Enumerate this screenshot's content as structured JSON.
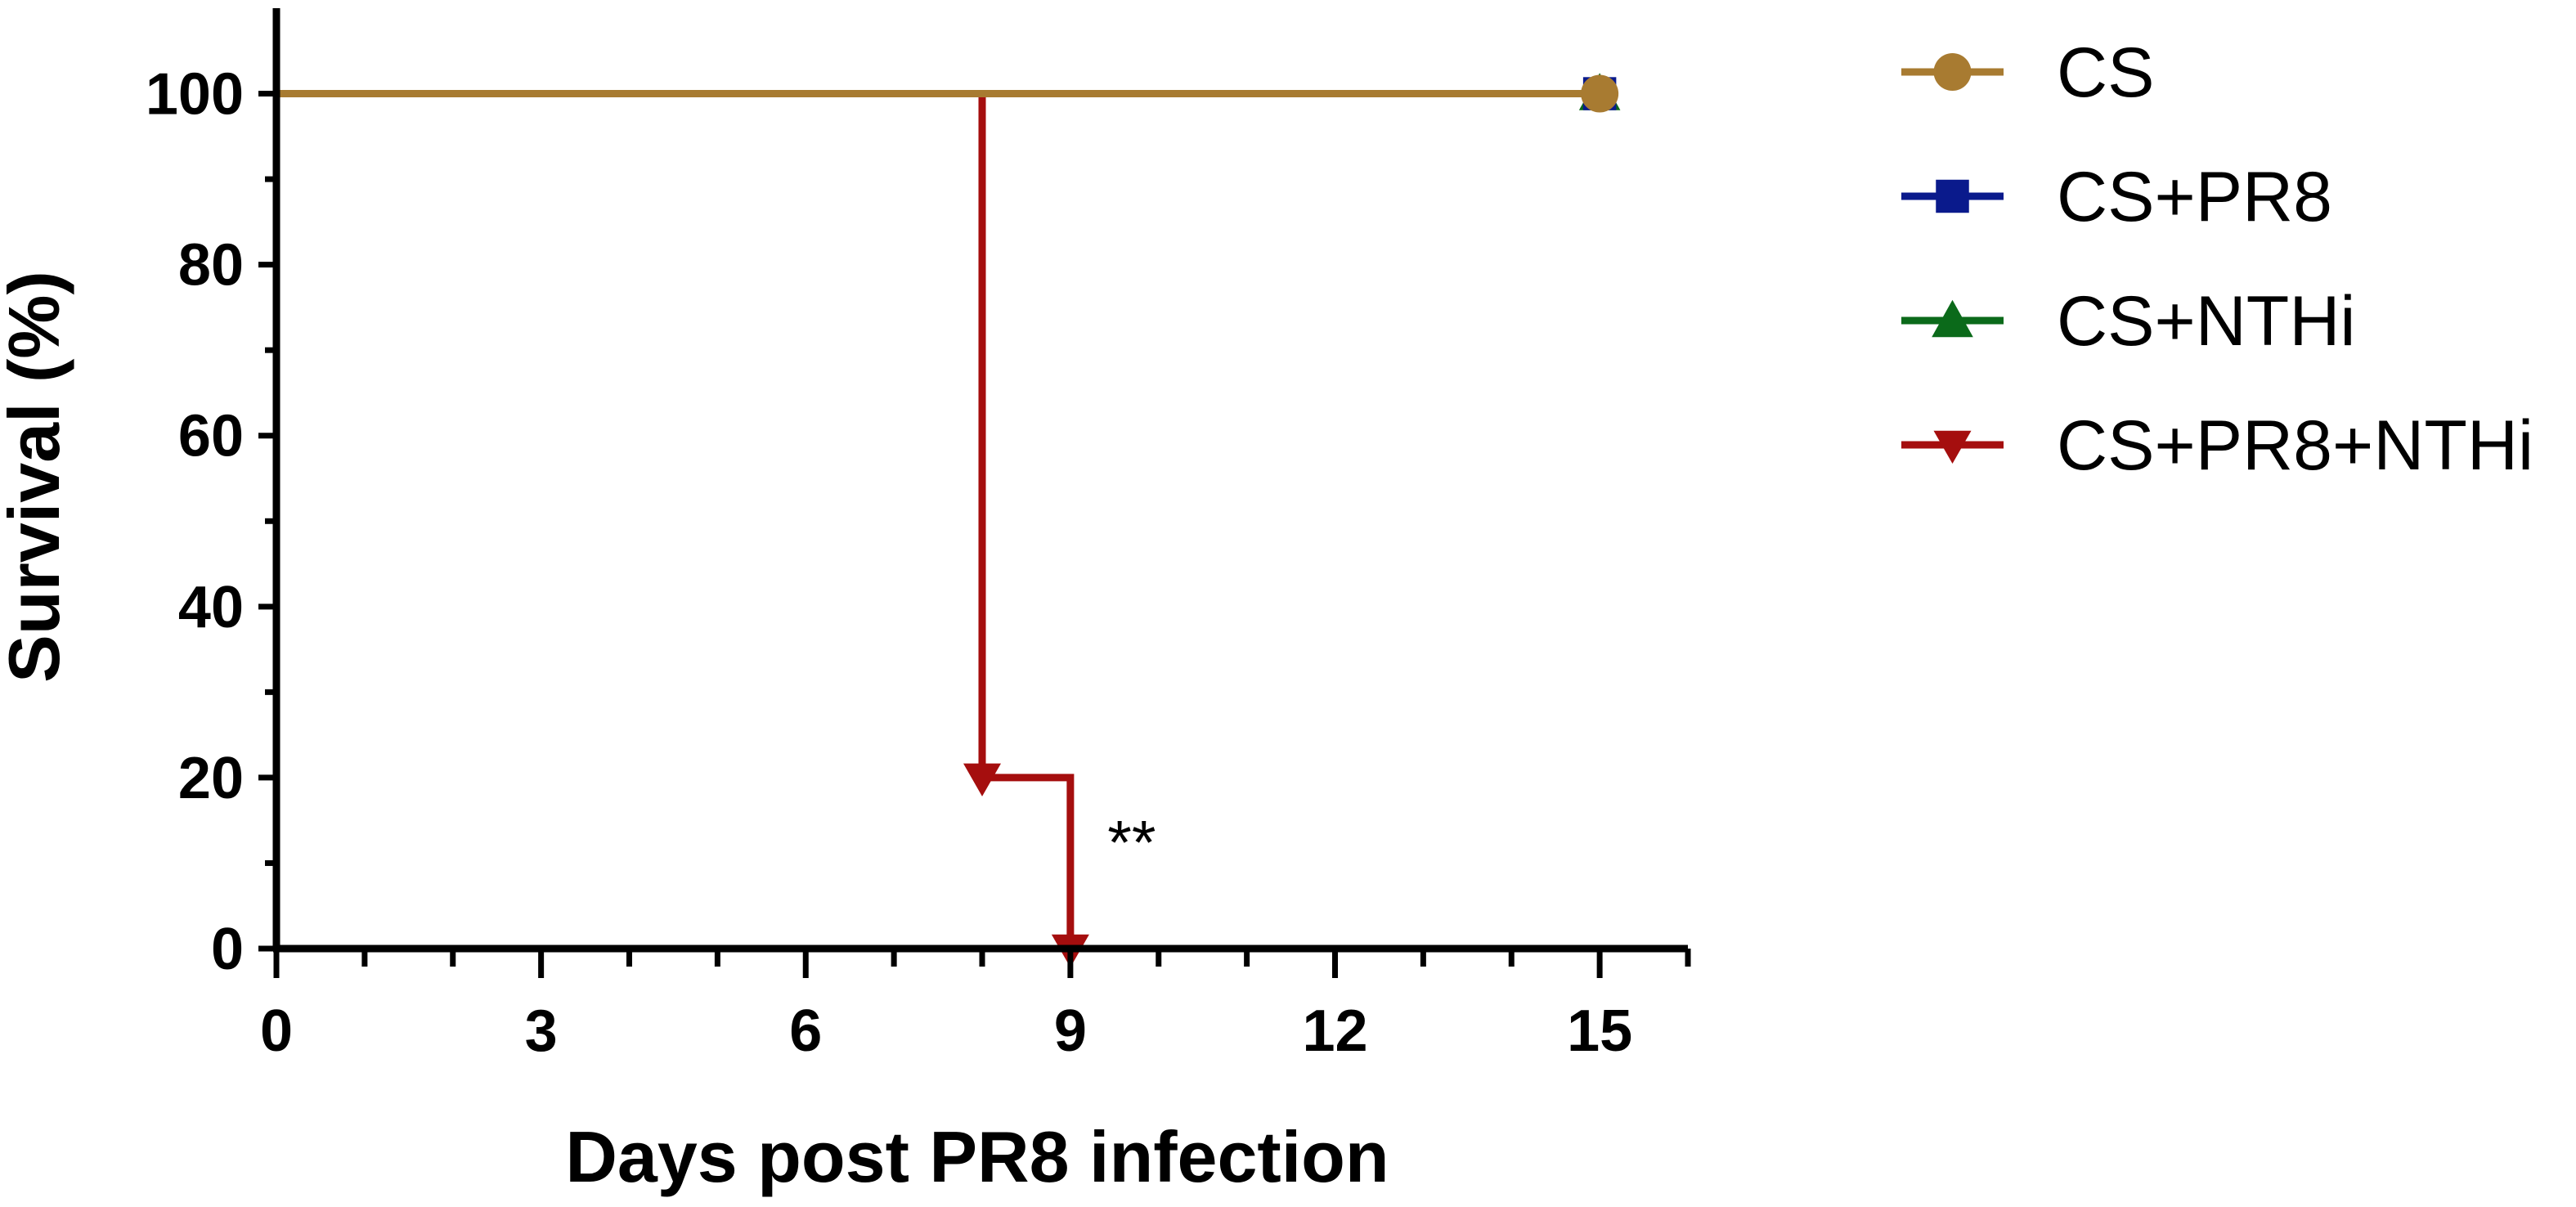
{
  "chart_data": {
    "type": "line",
    "step": true,
    "xlabel": "Days post PR8 infection",
    "ylabel": "Survival (%)",
    "xlim": [
      0,
      16
    ],
    "ylim": [
      0,
      110
    ],
    "xticks": [
      0,
      3,
      6,
      9,
      12,
      15
    ],
    "yticks": [
      0,
      20,
      40,
      60,
      80,
      100
    ],
    "legend_position": "right",
    "series": [
      {
        "name": "CS",
        "color": "#A87B31",
        "marker": "circle",
        "x": [
          0,
          15
        ],
        "y": [
          100,
          100
        ]
      },
      {
        "name": "CS+PR8",
        "color": "#0A1A8C",
        "marker": "square",
        "x": [
          0,
          15
        ],
        "y": [
          100,
          100
        ]
      },
      {
        "name": "CS+NTHi",
        "color": "#0B6A1A",
        "marker": "triangle-up",
        "x": [
          0,
          15
        ],
        "y": [
          100,
          100
        ]
      },
      {
        "name": "CS+PR8+NTHi",
        "color": "#A50E0E",
        "marker": "triangle-down",
        "x": [
          0,
          8,
          9
        ],
        "y": [
          100,
          20,
          0
        ]
      }
    ],
    "annotations": [
      {
        "text": "**",
        "x": 9,
        "y": 12
      }
    ]
  }
}
